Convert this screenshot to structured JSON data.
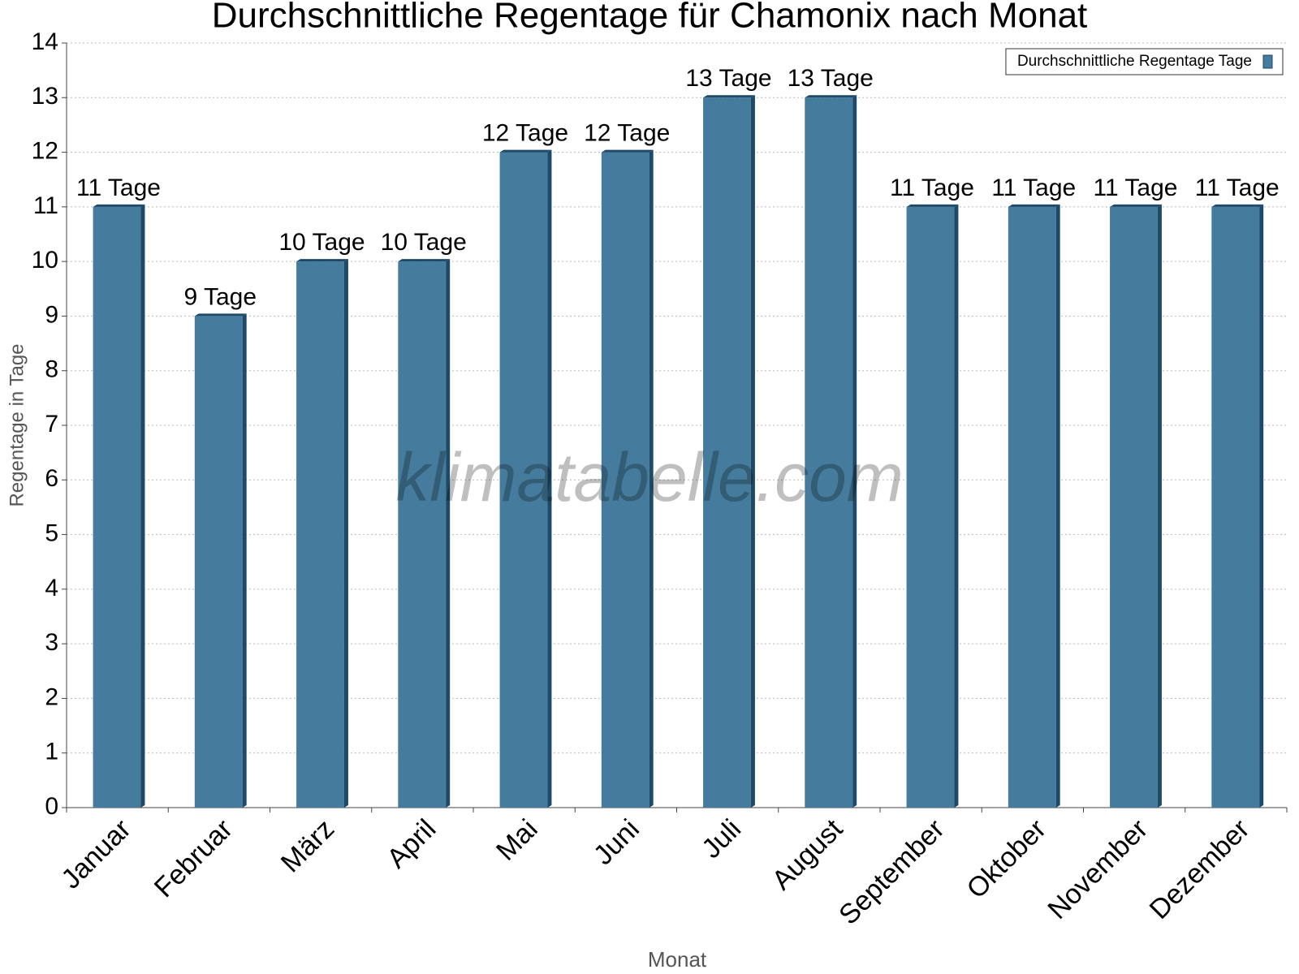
{
  "chart_data": {
    "type": "bar",
    "title": "Durchschnittliche Regentage für Chamonix nach Monat",
    "x_label": "Monat",
    "y_label": "Regentage in Tage",
    "watermark": "klimatabelle.com",
    "categories": [
      "Januar",
      "Februar",
      "März",
      "April",
      "Mai",
      "Juni",
      "Juli",
      "August",
      "September",
      "Oktober",
      "November",
      "Dezember"
    ],
    "series": [
      {
        "name": "Durchschnittliche Regentage Tage",
        "color": "#457b9d",
        "values": [
          11,
          9,
          10,
          10,
          12,
          12,
          13,
          13,
          11,
          11,
          11,
          11
        ],
        "value_labels": [
          "11 Tage",
          "9 Tage",
          "10 Tage",
          "10 Tage",
          "12 Tage",
          "12 Tage",
          "13 Tage",
          "13 Tage",
          "11 Tage",
          "11 Tage",
          "11 Tage",
          "11 Tage"
        ]
      }
    ],
    "ylim": [
      0,
      14
    ],
    "yticks": [
      0,
      1,
      2,
      3,
      4,
      5,
      6,
      7,
      8,
      9,
      10,
      11,
      12,
      13,
      14
    ],
    "grid": true,
    "legend": "top-right"
  }
}
